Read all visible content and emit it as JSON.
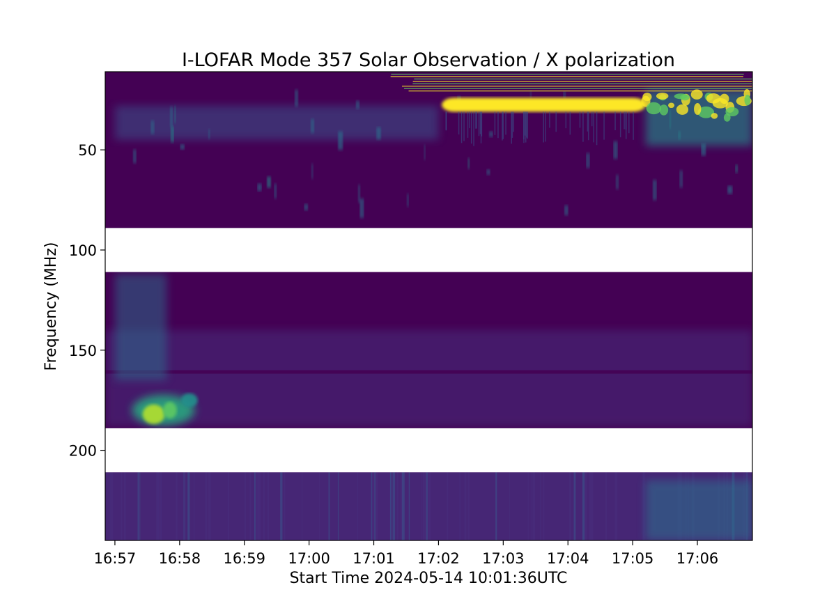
{
  "chart_data": {
    "type": "heatmap",
    "title": "I-LOFAR Mode 357 Solar Observation / X polarization",
    "xlabel": "Start Time 2024-05-14 10:01:36UTC",
    "ylabel": "Frequency (MHz)",
    "x_ticks": [
      "16:57",
      "16:58",
      "16:59",
      "17:00",
      "17:01",
      "17:02",
      "17:03",
      "17:04",
      "17:05",
      "17:06"
    ],
    "y_ticks": [
      50,
      100,
      150,
      200
    ],
    "xlim_minutes_after_16_57": [
      -0.15,
      9.85
    ],
    "ylim_mhz_top_to_bottom": [
      11,
      245
    ],
    "colormap": "viridis",
    "colors": [
      "#440154",
      "#472d7b",
      "#3b528b",
      "#2c728e",
      "#21918c",
      "#28ae80",
      "#5ec962",
      "#addc30",
      "#fde725"
    ],
    "background_level": 0.02,
    "data_gaps_mhz": [
      [
        89,
        111
      ],
      [
        189,
        211
      ]
    ],
    "features": [
      {
        "name": "strong-emission",
        "t_min": [
          5.05,
          8.2
        ],
        "f_mhz": [
          24,
          31
        ],
        "level": 1.0
      },
      {
        "name": "burst-band-upper-right",
        "t_min": [
          8.2,
          9.85
        ],
        "f_mhz": [
          20,
          48
        ],
        "level": 0.55
      },
      {
        "name": "low-frequency-emission",
        "t_min": [
          0.0,
          5.0
        ],
        "f_mhz": [
          28,
          45
        ],
        "level": 0.25
      },
      {
        "name": "early-burst",
        "t_min": [
          0.2,
          1.3
        ],
        "f_mhz": [
          160,
          188
        ],
        "level": 0.8
      },
      {
        "name": "diffuse-mid-band",
        "t_min": [
          0.0,
          9.85
        ],
        "f_mhz": [
          140,
          188
        ],
        "level": 0.12
      },
      {
        "name": "lower-band-diffuse",
        "t_min": [
          0.0,
          9.85
        ],
        "f_mhz": [
          211,
          245
        ],
        "level": 0.15
      }
    ]
  }
}
